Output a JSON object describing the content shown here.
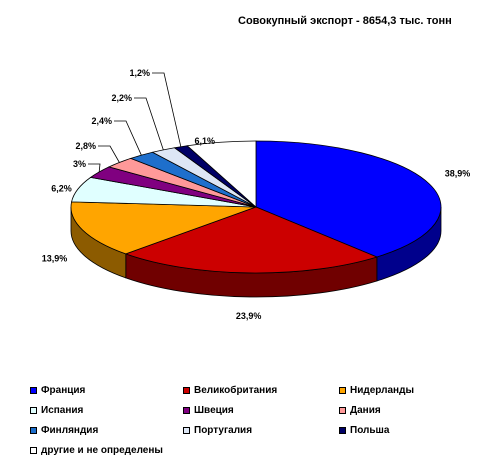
{
  "chart_data": {
    "type": "pie",
    "title": "Совокупный экспорт - 8654,3 тыс. тонн",
    "slices": [
      {
        "name": "Франция",
        "value": 38.9,
        "label": "38,9%",
        "color": "#0000ff"
      },
      {
        "name": "Великобритания",
        "value": 23.9,
        "label": "23,9%",
        "color": "#cc0000"
      },
      {
        "name": "Нидерланды",
        "value": 13.9,
        "label": "13,9%",
        "color": "#ffa500"
      },
      {
        "name": "Испания",
        "value": 6.2,
        "label": "6,2%",
        "color": "#e0ffff"
      },
      {
        "name": "Швеция",
        "value": 3.0,
        "label": "3%",
        "color": "#800080"
      },
      {
        "name": "Дания",
        "value": 2.8,
        "label": "2,8%",
        "color": "#ff9999"
      },
      {
        "name": "Финляндия",
        "value": 2.4,
        "label": "2,4%",
        "color": "#1e6fcc"
      },
      {
        "name": "Португалия",
        "value": 2.2,
        "label": "2,2%",
        "color": "#dde6f5"
      },
      {
        "name": "Польша",
        "value": 1.2,
        "label": "1,2%",
        "color": "#000066"
      },
      {
        "name": "другие и не определены",
        "value": 6.1,
        "label": "6,1%",
        "color": "#ffffff"
      }
    ],
    "legend_position": "bottom"
  }
}
